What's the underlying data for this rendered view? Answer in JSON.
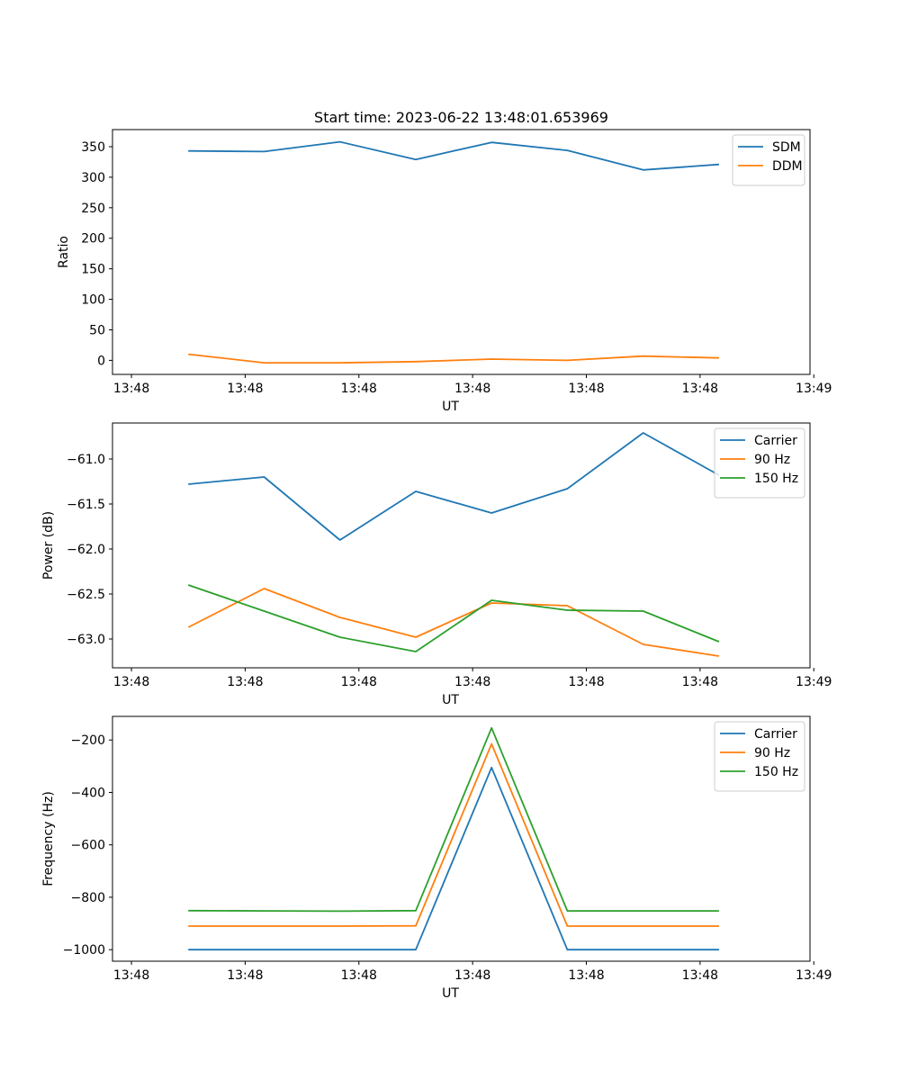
{
  "chart_data": [
    {
      "type": "line",
      "title": "Start time: 2023-06-22 13:48:01.653969",
      "xlabel": "UT",
      "ylabel": "Ratio",
      "xlim": [
        0,
        9.2
      ],
      "ylim": [
        -23,
        378
      ],
      "x": [
        1,
        2,
        3,
        4,
        5,
        6,
        7,
        8
      ],
      "xticks": [
        0.25,
        1.75,
        3.25,
        4.75,
        6.25,
        7.75,
        9.25
      ],
      "xtick_labels": [
        "13:48",
        "13:48",
        "13:48",
        "13:48",
        "13:48",
        "13:48",
        "13:49"
      ],
      "yticks": [
        0,
        50,
        100,
        150,
        200,
        250,
        300,
        350
      ],
      "ytick_labels": [
        "0",
        "50",
        "100",
        "150",
        "200",
        "250",
        "300",
        "350"
      ],
      "legend_position": "top-right",
      "grid": false,
      "series": [
        {
          "name": "SDM",
          "color": "#1f77b4",
          "values": [
            343,
            342,
            358,
            329,
            357,
            344,
            312,
            321
          ]
        },
        {
          "name": "DDM",
          "color": "#ff7f0e",
          "values": [
            10,
            -4,
            -4,
            -2,
            2,
            0,
            7,
            4
          ]
        }
      ]
    },
    {
      "type": "line",
      "title": "",
      "xlabel": "UT",
      "ylabel": "Power (dB)",
      "xlim": [
        0,
        9.2
      ],
      "ylim": [
        -63.32,
        -60.6
      ],
      "x": [
        1,
        2,
        3,
        4,
        5,
        6,
        7,
        8
      ],
      "xticks": [
        0.25,
        1.75,
        3.25,
        4.75,
        6.25,
        7.75,
        9.25
      ],
      "xtick_labels": [
        "13:48",
        "13:48",
        "13:48",
        "13:48",
        "13:48",
        "13:48",
        "13:49"
      ],
      "yticks": [
        -63.0,
        -62.5,
        -62.0,
        -61.5,
        -61.0
      ],
      "ytick_labels": [
        "−63.0",
        "−62.5",
        "−62.0",
        "−61.5",
        "−61.0"
      ],
      "legend_position": "top-right",
      "grid": false,
      "series": [
        {
          "name": "Carrier",
          "color": "#1f77b4",
          "values": [
            -61.28,
            -61.2,
            -61.9,
            -61.36,
            -61.6,
            -61.33,
            -60.71,
            -61.18
          ]
        },
        {
          "name": "90 Hz",
          "color": "#ff7f0e",
          "values": [
            -62.87,
            -62.44,
            -62.76,
            -62.98,
            -62.6,
            -62.63,
            -63.06,
            -63.19
          ]
        },
        {
          "name": "150 Hz",
          "color": "#2ca02c",
          "values": [
            -62.4,
            -62.69,
            -62.98,
            -63.14,
            -62.57,
            -62.68,
            -62.69,
            -63.03
          ]
        }
      ]
    },
    {
      "type": "line",
      "title": "",
      "xlabel": "UT",
      "ylabel": "Frequency (Hz)",
      "xlim": [
        0,
        9.2
      ],
      "ylim": [
        -1044,
        -110
      ],
      "x": [
        1,
        2,
        3,
        4,
        5,
        6,
        7,
        8
      ],
      "xticks": [
        0.25,
        1.75,
        3.25,
        4.75,
        6.25,
        7.75,
        9.25
      ],
      "xtick_labels": [
        "13:48",
        "13:48",
        "13:48",
        "13:48",
        "13:48",
        "13:48",
        "13:49"
      ],
      "yticks": [
        -1000,
        -800,
        -600,
        -400,
        -200
      ],
      "ytick_labels": [
        "−1000",
        "−800",
        "−600",
        "−400",
        "−200"
      ],
      "legend_position": "top-right",
      "grid": false,
      "series": [
        {
          "name": "Carrier",
          "color": "#1f77b4",
          "values": [
            -1000,
            -1000,
            -1000,
            -1000,
            -305,
            -1000,
            -1000,
            -1000
          ]
        },
        {
          "name": "90 Hz",
          "color": "#ff7f0e",
          "values": [
            -910,
            -910,
            -910,
            -909,
            -215,
            -910,
            -910,
            -910
          ]
        },
        {
          "name": "150 Hz",
          "color": "#2ca02c",
          "values": [
            -851,
            -852,
            -853,
            -851,
            -154,
            -852,
            -852,
            -852
          ]
        }
      ]
    }
  ]
}
